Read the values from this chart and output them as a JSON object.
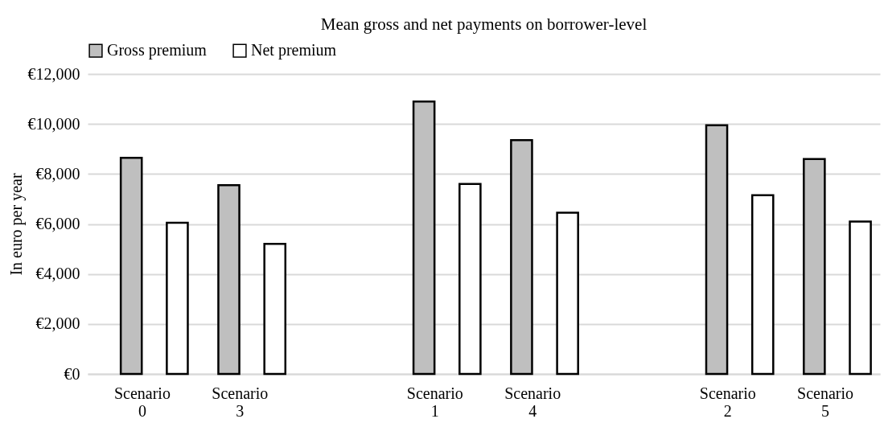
{
  "chart_data": {
    "type": "bar",
    "title": "Mean gross and net payments on borrower-level",
    "ylabel": "In euro per year",
    "categories": [
      "Scenario 0",
      "Scenario 3",
      null,
      "Scenario 1",
      "Scenario 4",
      null,
      "Scenario 2",
      "Scenario 5"
    ],
    "series": [
      {
        "name": "Gross premium",
        "color": "#bfbfbf",
        "values": [
          8650,
          7550,
          null,
          10900,
          9350,
          null,
          9950,
          8600
        ]
      },
      {
        "name": "Net premium",
        "color": "#ffffff",
        "values": [
          6050,
          5200,
          null,
          7600,
          6450,
          null,
          7150,
          6100
        ]
      }
    ],
    "ylim": [
      0,
      12000
    ],
    "yticks": [
      {
        "value": 0,
        "label": "€0"
      },
      {
        "value": 2000,
        "label": "€2,000"
      },
      {
        "value": 4000,
        "label": "€4,000"
      },
      {
        "value": 6000,
        "label": "€6,000"
      },
      {
        "value": 8000,
        "label": "€8,000"
      },
      {
        "value": 10000,
        "label": "€10,000"
      },
      {
        "value": 12000,
        "label": "€12,000"
      }
    ],
    "grid": "y",
    "legend": "top"
  }
}
